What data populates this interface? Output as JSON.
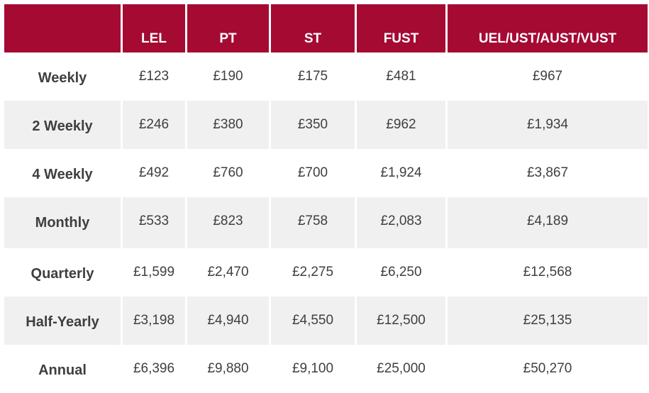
{
  "table": {
    "headers": [
      "",
      "LEL",
      "PT",
      "ST",
      "FUST",
      "UEL/UST/AUST/VUST"
    ],
    "rows": [
      {
        "label": "Weekly",
        "values": [
          "£123",
          "£190",
          "£175",
          "£481",
          "£967"
        ]
      },
      {
        "label": "2 Weekly",
        "values": [
          "£246",
          "£380",
          "£350",
          "£962",
          "£1,934"
        ]
      },
      {
        "label": "4 Weekly",
        "values": [
          "£492",
          "£760",
          "£700",
          "£1,924",
          "£3,867"
        ]
      },
      {
        "label": "Monthly",
        "values": [
          "£533",
          "£823",
          "£758",
          "£2,083",
          "£4,189"
        ]
      },
      {
        "label": "Quarterly",
        "values": [
          "£1,599",
          "£2,470",
          "£2,275",
          "£6,250",
          "£12,568"
        ]
      },
      {
        "label": "Half-Yearly",
        "values": [
          "£3,198",
          "£4,940",
          "£4,550",
          "£12,500",
          "£25,135"
        ]
      },
      {
        "label": "Annual",
        "values": [
          "£6,396",
          "£9,880",
          "£9,100",
          "£25,000",
          "£50,270"
        ]
      }
    ]
  },
  "colors": {
    "header_bg": "#a50a33",
    "header_text": "#ffffff",
    "row_shade": "#f0f0f0",
    "body_text": "#3f3f3f"
  }
}
